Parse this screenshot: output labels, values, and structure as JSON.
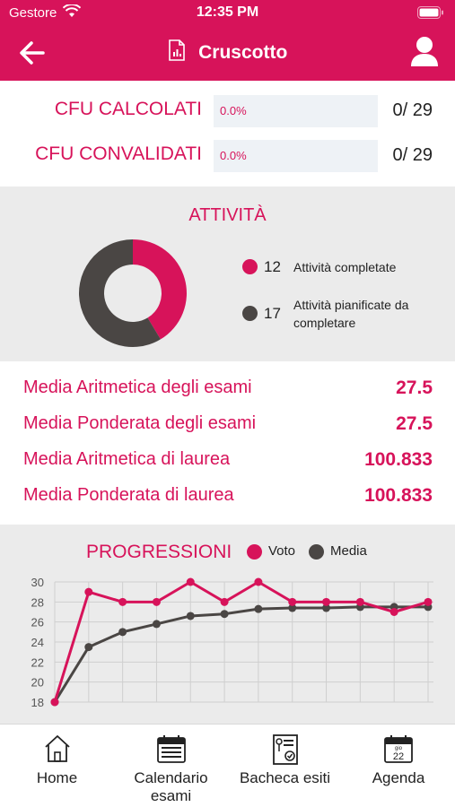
{
  "status_bar": {
    "carrier": "Gestore",
    "time": "12:35 PM"
  },
  "header": {
    "title": "Cruscotto",
    "back_icon": "arrow-left-icon",
    "doc_icon": "document-chart-icon",
    "profile_icon": "user-icon",
    "color": "#d7135a"
  },
  "cfu": [
    {
      "label": "CFU CALCOLATI",
      "percent_text": "0.0%",
      "progress": 0.0,
      "count": "0/ 29"
    },
    {
      "label": "CFU CONVALIDATI",
      "percent_text": "0.0%",
      "progress": 0.0,
      "count": "0/ 29"
    }
  ],
  "attivita": {
    "title": "ATTIVITÀ",
    "items": [
      {
        "count": "12",
        "label": "Attività completate",
        "color": "#d7135a"
      },
      {
        "count": "17",
        "label": "Attività pianificate da completare",
        "color": "#4a4644"
      }
    ]
  },
  "medie": [
    {
      "label": "Media Aritmetica degli esami",
      "value": "27.5"
    },
    {
      "label": "Media Ponderata degli esami",
      "value": "27.5"
    },
    {
      "label": "Media Aritmetica di laurea",
      "value": "100.833"
    },
    {
      "label": "Media Ponderata di laurea",
      "value": "100.833"
    }
  ],
  "progressioni": {
    "title": "PROGRESSIONI",
    "legend": [
      {
        "label": "Voto",
        "color": "#d7135a"
      },
      {
        "label": "Media",
        "color": "#4a4644"
      }
    ]
  },
  "chart_data": {
    "type": "line",
    "title": "PROGRESSIONI",
    "ylim": [
      18,
      30
    ],
    "yticks": [
      "18",
      "20",
      "22",
      "24",
      "26",
      "28",
      "30"
    ],
    "grid": true,
    "legend_position": "top",
    "series": [
      {
        "name": "Voto",
        "color": "#d7135a",
        "values": [
          18,
          29,
          28,
          28,
          30,
          28,
          30,
          28,
          28,
          28,
          27,
          28
        ]
      },
      {
        "name": "Media",
        "color": "#4a4644",
        "values": [
          18,
          23.5,
          25,
          25.8,
          26.6,
          26.8,
          27.3,
          27.4,
          27.4,
          27.5,
          27.5,
          27.5
        ]
      }
    ]
  },
  "tabs": [
    {
      "label": "Home",
      "icon": "home-icon"
    },
    {
      "label": "Calendario esami",
      "icon": "calendar-icon"
    },
    {
      "label": "Bacheca esiti",
      "icon": "certificate-icon"
    },
    {
      "label": "Agenda",
      "icon": "agenda-calendar-icon",
      "icon_text_top": "gio",
      "icon_text_day": "22"
    }
  ]
}
